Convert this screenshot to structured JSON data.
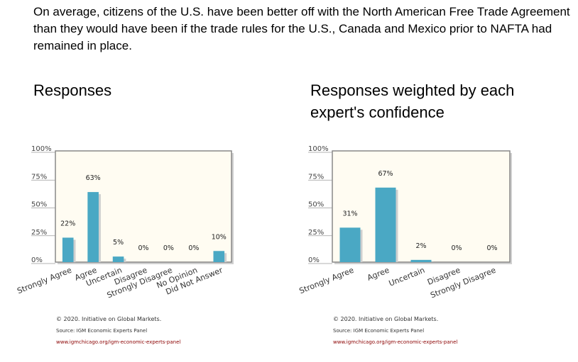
{
  "question": "On average, citizens of the U.S. have been better off with the North American Free Trade Agreement than they would have been if the trade rules for the U.S., Canada and Mexico prior to NAFTA had remained in place.",
  "panels": [
    {
      "title": "Responses"
    },
    {
      "title": "Responses weighted by each expert's confidence"
    }
  ],
  "footer": {
    "copyright": "© 2020. Initiative on Global Markets.",
    "source": "Source: IGM Economic Experts Panel",
    "url": "www.igmchicago.org/igm-economic-experts-panel"
  },
  "colors": {
    "bar": "#4aa8c4",
    "plot_bg": "#fffcf2",
    "frame": "#888888",
    "url": "#8b0000"
  },
  "chart_data": [
    {
      "type": "bar",
      "title": "Responses",
      "categories": [
        "Strongly Agree",
        "Agree",
        "Uncertain",
        "Disagree",
        "Strongly Disagree",
        "No Opinion",
        "Did Not Answer"
      ],
      "values": [
        22,
        63,
        5,
        0,
        0,
        0,
        10
      ],
      "data_labels": [
        "22%",
        "63%",
        "5%",
        "0%",
        "0%",
        "0%",
        "10%"
      ],
      "yticks": [
        "0%",
        "25%",
        "50%",
        "75%",
        "100%"
      ],
      "ylim": [
        0,
        100
      ],
      "grid": false
    },
    {
      "type": "bar",
      "title": "Responses weighted by each expert's confidence",
      "categories": [
        "Strongly Agree",
        "Agree",
        "Uncertain",
        "Disagree",
        "Strongly Disagree"
      ],
      "values": [
        31,
        67,
        2,
        0,
        0
      ],
      "data_labels": [
        "31%",
        "67%",
        "2%",
        "0%",
        "0%"
      ],
      "yticks": [
        "0%",
        "25%",
        "50%",
        "75%",
        "100%"
      ],
      "ylim": [
        0,
        100
      ],
      "grid": false
    }
  ]
}
